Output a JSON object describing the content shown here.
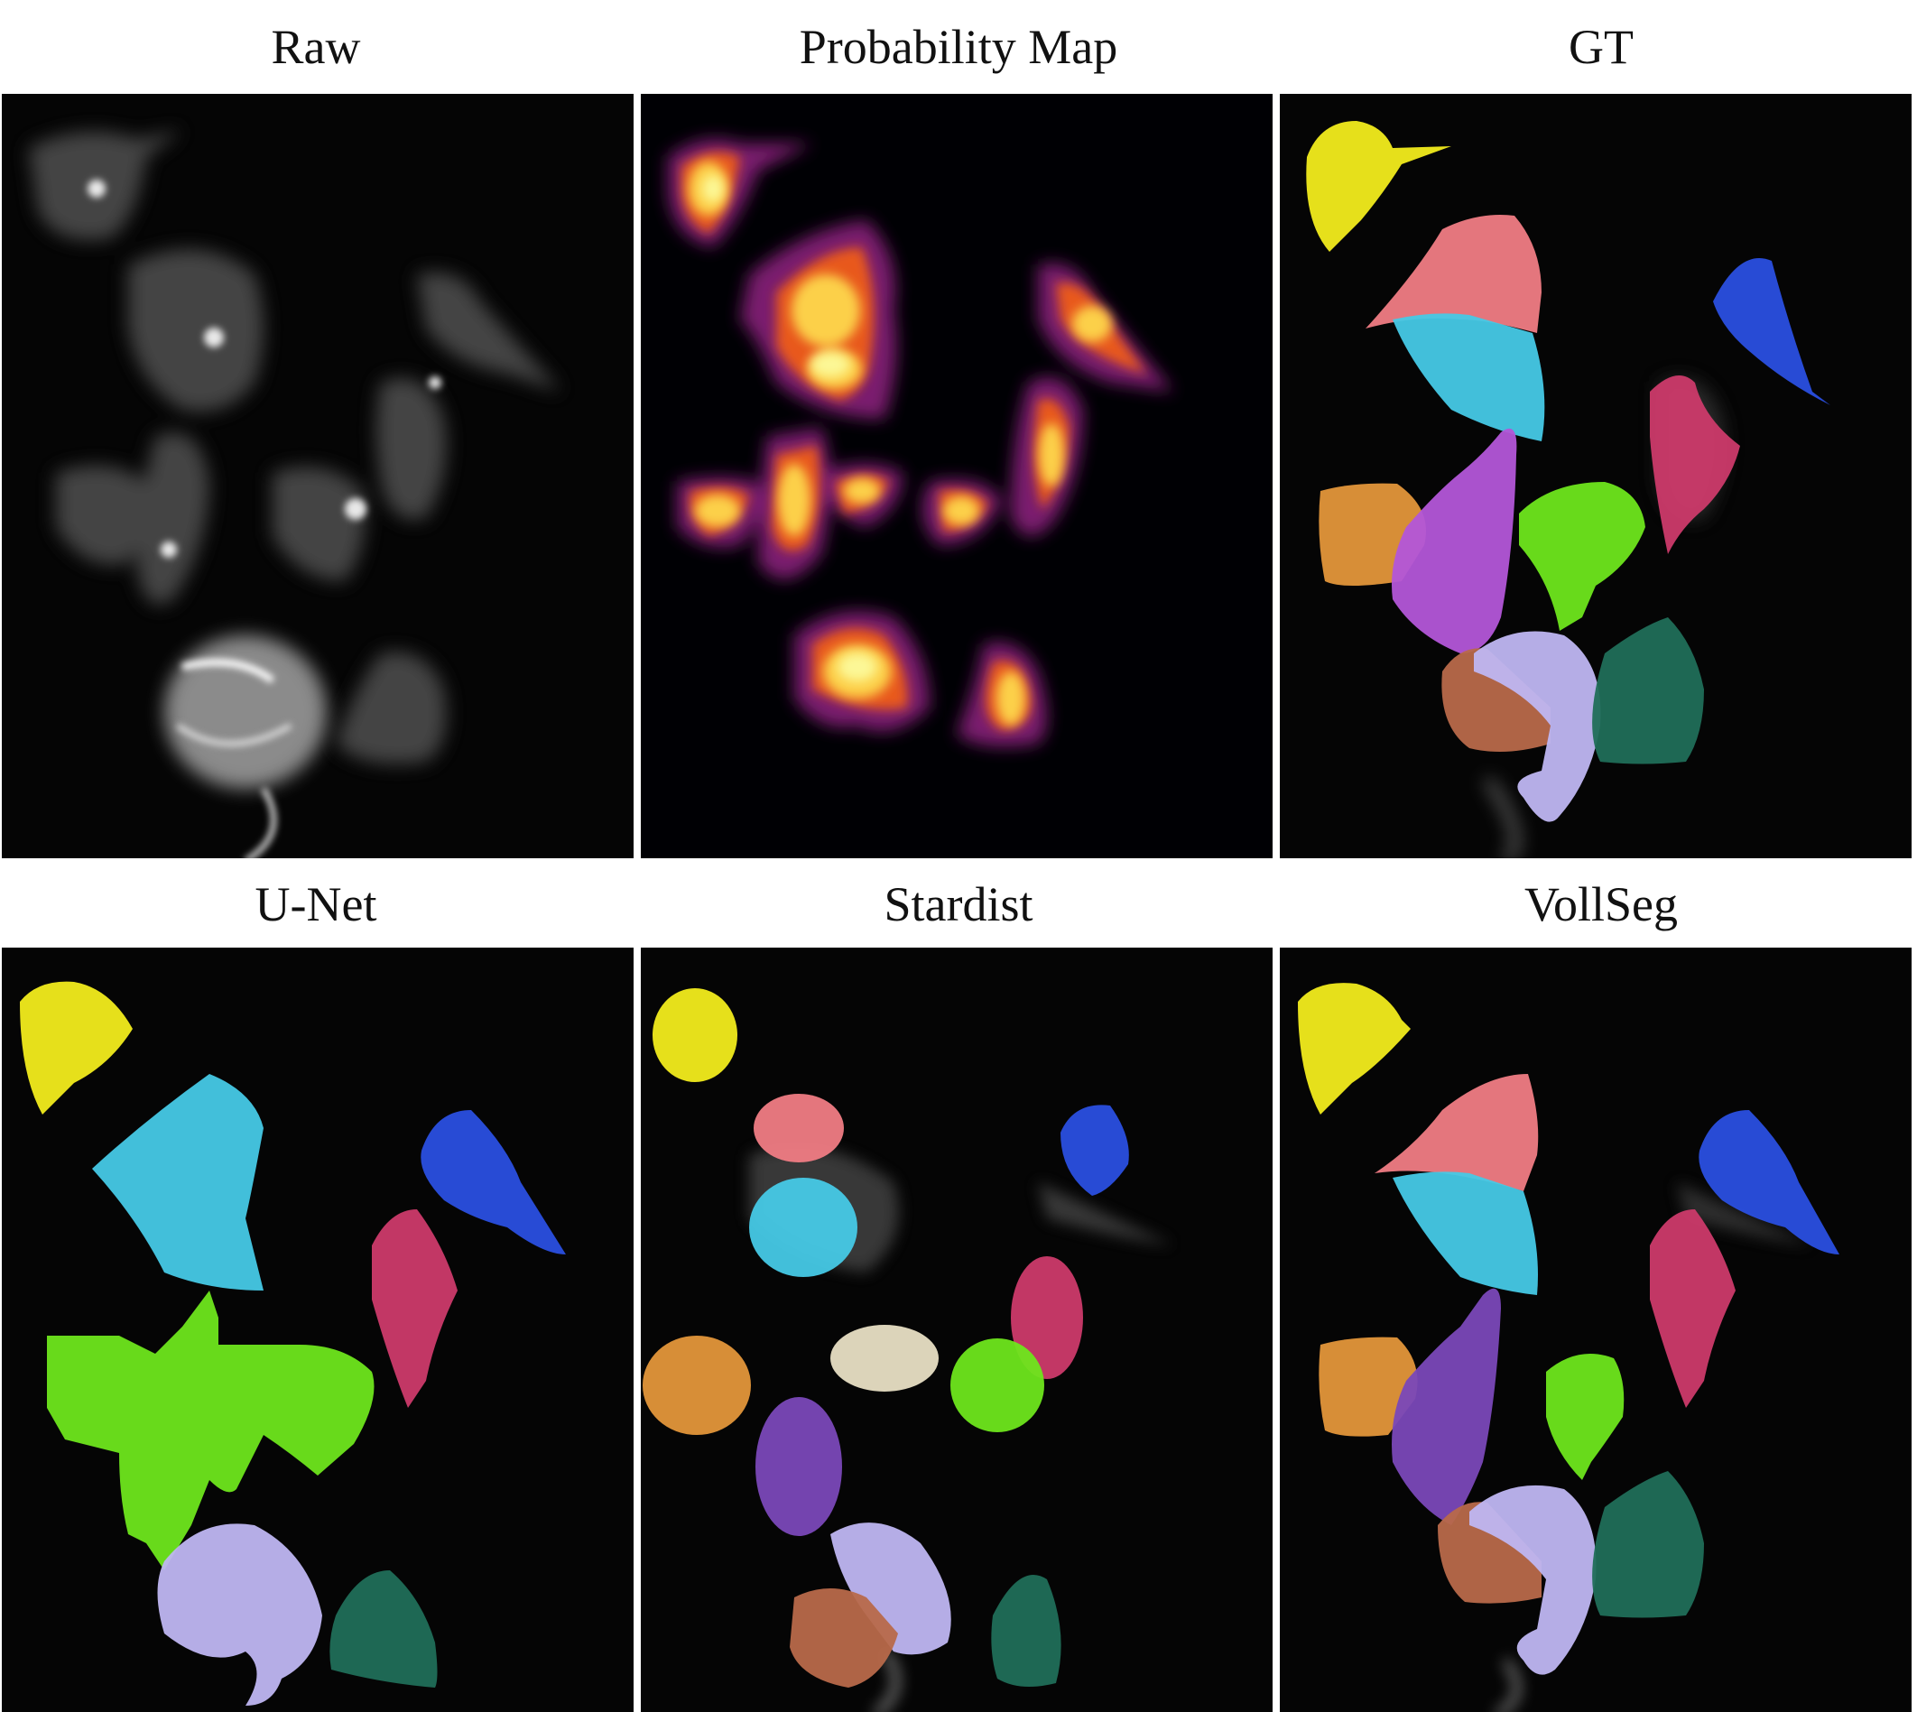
{
  "figure": {
    "panels": [
      {
        "id": "raw",
        "title": "Raw",
        "kind": "fluorescence-microscopy"
      },
      {
        "id": "prob",
        "title": "Probability Map",
        "kind": "heatmap-inferno"
      },
      {
        "id": "gt",
        "title": "GT",
        "kind": "segmentation-overlay"
      },
      {
        "id": "unet",
        "title": "U-Net",
        "kind": "segmentation-overlay"
      },
      {
        "id": "stardist",
        "title": "Stardist",
        "kind": "segmentation-overlay"
      },
      {
        "id": "vollseg",
        "title": "VollSeg",
        "kind": "segmentation-overlay"
      }
    ],
    "colors": {
      "background": "#050505",
      "yellow": "#f2ec1c",
      "pink": "#f07c84",
      "cyan": "#46c9e6",
      "blue": "#2a4fe0",
      "magenta": "#cc3a6a",
      "orange": "#e3963a",
      "violet": "#b356d8",
      "purple": "#7a48b8",
      "green": "#6ee61c",
      "lavender": "#bfb6f2",
      "brown": "#b8694a",
      "teal": "#206e58",
      "beige": "#e8dfc4"
    }
  }
}
